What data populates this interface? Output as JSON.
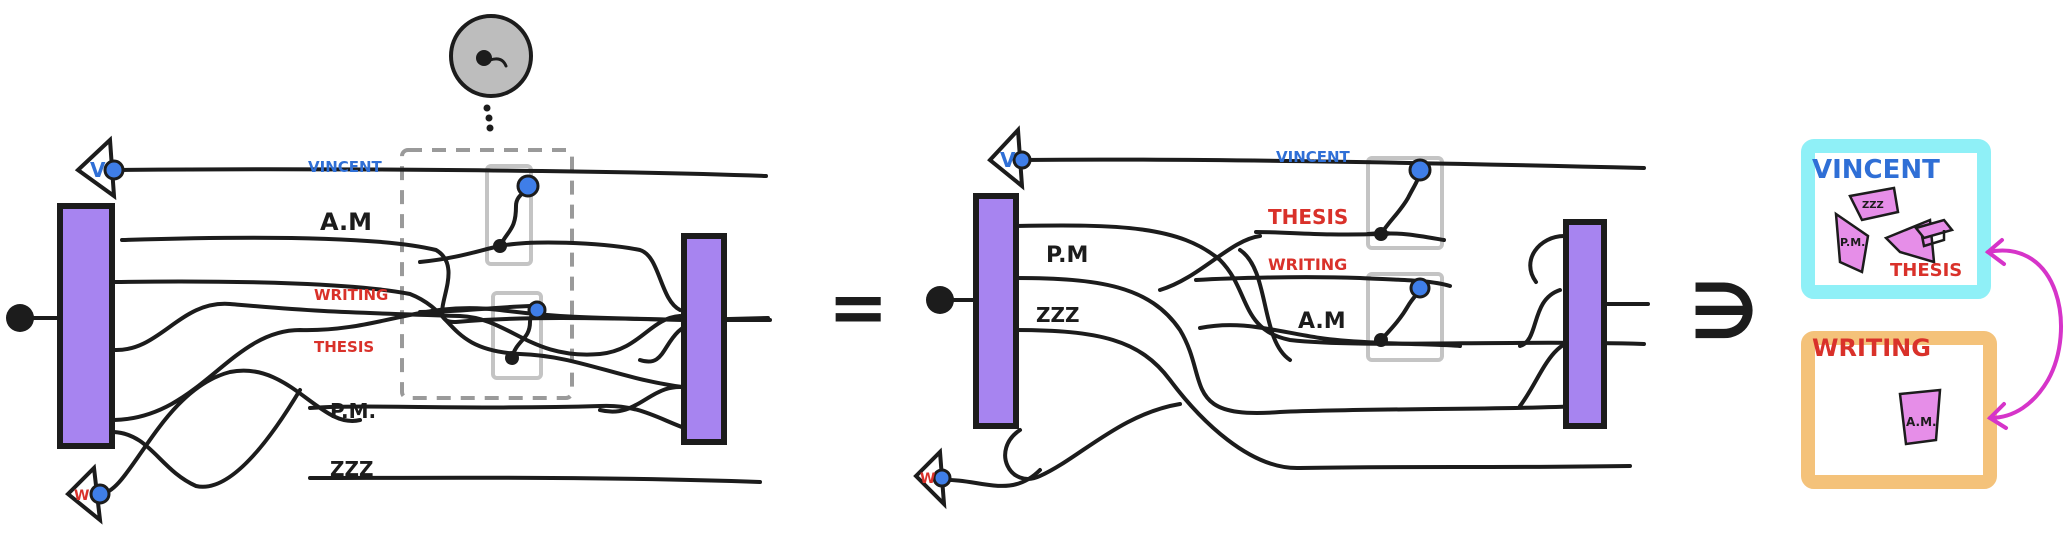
{
  "colors": {
    "ink": "#1c1c1c",
    "bar_fill": "#a784f0",
    "label_blue": "#2f6fd6",
    "label_red": "#d9312a",
    "node_blue": "#3f7ee8",
    "frame_cyan": "#8ff0f7",
    "frame_orange": "#f4c27a",
    "piece_pink": "#e68ee8",
    "arrow_magenta": "#d634c9",
    "dashed_gray": "#9a9a9a",
    "box_gray": "#c4c4c4",
    "disk_gray": "#bdbdbd"
  },
  "left": {
    "label_vincent": "VINCENT",
    "label_am": "A.M",
    "label_writing": "WRITING",
    "label_thesis": "THESIS",
    "label_pm": "P.M.",
    "label_zzz": "ZZZ",
    "badge_v": "V",
    "badge_w": "W"
  },
  "equals_sign": "=",
  "middle": {
    "label_vincent": "VINCENT",
    "label_thesis": "THESIS",
    "label_writing": "WRITING",
    "label_am": "A.M",
    "label_pm": "P.M",
    "label_zzz": "ZZZ",
    "badge_v": "V",
    "badge_w": "W"
  },
  "contains_sign": "∋",
  "right": {
    "vincent_title": "VINCENT",
    "writing_title": "WRITING",
    "piece_zzz": "ZZZ",
    "piece_pm": "P.M.",
    "piece_thesis": "THESIS",
    "piece_am": "A.M."
  },
  "icons": {
    "gray_disk": "disk-with-cursor-icon",
    "equals": "equals-icon",
    "contains": "contains-icon",
    "cap": "graduation-cap-icon",
    "arrow": "double-arrow-icon"
  }
}
